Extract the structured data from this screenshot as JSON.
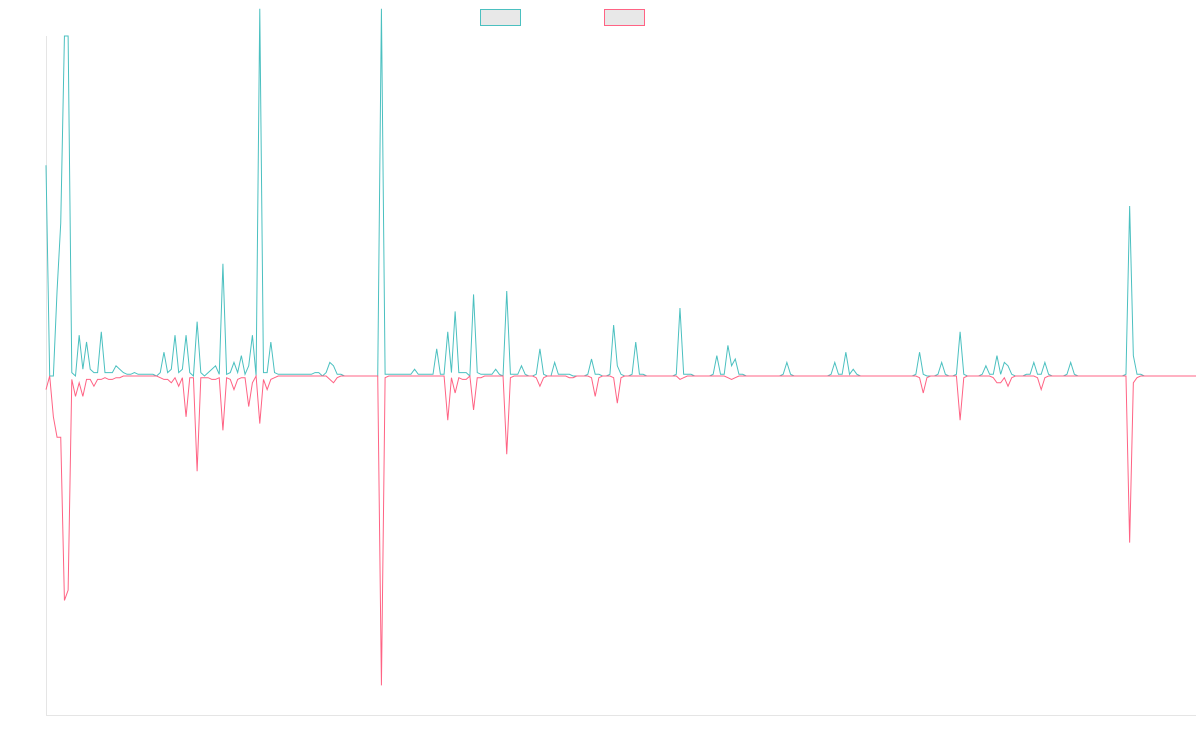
{
  "chart_data": {
    "type": "line",
    "title": "",
    "xlabel": "",
    "ylabel": "",
    "x_count": 313,
    "ylim": [
      -10,
      10
    ],
    "grid": false,
    "legend_position": "top-center",
    "series": [
      {
        "color": "#4bc0c0",
        "legend_fill": "#e8e8e8",
        "peaks": [
          [
            0,
            6.2
          ],
          [
            1,
            0
          ],
          [
            3,
            2.5
          ],
          [
            4,
            4.5
          ],
          [
            5,
            10
          ],
          [
            6,
            10
          ],
          [
            7,
            0.1
          ],
          [
            9,
            1.2
          ],
          [
            10,
            0.2
          ],
          [
            11,
            1
          ],
          [
            12,
            0.2
          ],
          [
            13,
            0.1
          ],
          [
            14,
            0.1
          ],
          [
            15,
            1.3
          ],
          [
            16,
            0.1
          ],
          [
            17,
            0.1
          ],
          [
            18,
            0.1
          ],
          [
            19,
            0.3
          ],
          [
            20,
            0.2
          ],
          [
            21,
            0.1
          ],
          [
            22,
            0.05
          ],
          [
            23,
            0.05
          ],
          [
            24,
            0.1
          ],
          [
            25,
            0.05
          ],
          [
            26,
            0.05
          ],
          [
            27,
            0.05
          ],
          [
            28,
            0.05
          ],
          [
            29,
            0.05
          ],
          [
            31,
            0.1
          ],
          [
            32,
            0.7
          ],
          [
            33,
            0.1
          ],
          [
            34,
            0.2
          ],
          [
            35,
            1.2
          ],
          [
            36,
            0.1
          ],
          [
            37,
            0.2
          ],
          [
            38,
            1.2
          ],
          [
            39,
            0.1
          ],
          [
            41,
            1.6
          ],
          [
            42,
            0.1
          ],
          [
            44,
            0.1
          ],
          [
            45,
            0.2
          ],
          [
            46,
            0.3
          ],
          [
            47,
            0.05
          ],
          [
            48,
            3.3
          ],
          [
            49,
            0.05
          ],
          [
            50,
            0.1
          ],
          [
            51,
            0.4
          ],
          [
            52,
            0.1
          ],
          [
            53,
            0.6
          ],
          [
            54,
            0.05
          ],
          [
            55,
            0.3
          ],
          [
            56,
            1.2
          ],
          [
            58,
            10.8
          ],
          [
            59,
            0.1
          ],
          [
            60,
            0.1
          ],
          [
            61,
            1
          ],
          [
            62,
            0.1
          ],
          [
            63,
            0.05
          ],
          [
            64,
            0.05
          ],
          [
            65,
            0.05
          ],
          [
            66,
            0.05
          ],
          [
            67,
            0.05
          ],
          [
            68,
            0.05
          ],
          [
            69,
            0.05
          ],
          [
            70,
            0.05
          ],
          [
            71,
            0.05
          ],
          [
            72,
            0.05
          ],
          [
            73,
            0.1
          ],
          [
            74,
            0.1
          ],
          [
            76,
            0.1
          ],
          [
            77,
            0.4
          ],
          [
            78,
            0.3
          ],
          [
            79,
            0.05
          ],
          [
            80,
            0.05
          ],
          [
            91,
            10.8
          ],
          [
            92,
            0.05
          ],
          [
            93,
            0.05
          ],
          [
            94,
            0.05
          ],
          [
            95,
            0.05
          ],
          [
            96,
            0.05
          ],
          [
            97,
            0.05
          ],
          [
            98,
            0.05
          ],
          [
            99,
            0.05
          ],
          [
            100,
            0.2
          ],
          [
            101,
            0.05
          ],
          [
            102,
            0.05
          ],
          [
            103,
            0.05
          ],
          [
            104,
            0.05
          ],
          [
            105,
            0.05
          ],
          [
            106,
            0.8
          ],
          [
            107,
            0.05
          ],
          [
            108,
            0.05
          ],
          [
            109,
            1.3
          ],
          [
            110,
            0.1
          ],
          [
            111,
            1.9
          ],
          [
            112,
            0.1
          ],
          [
            113,
            0.1
          ],
          [
            114,
            0.1
          ],
          [
            116,
            2.4
          ],
          [
            117,
            0.1
          ],
          [
            118,
            0.05
          ],
          [
            119,
            0.05
          ],
          [
            120,
            0.05
          ],
          [
            121,
            0.05
          ],
          [
            122,
            0.2
          ],
          [
            123,
            0.05
          ],
          [
            125,
            2.5
          ],
          [
            126,
            0.05
          ],
          [
            127,
            0.05
          ],
          [
            128,
            0.05
          ],
          [
            129,
            0.3
          ],
          [
            130,
            0.05
          ],
          [
            133,
            0.05
          ],
          [
            134,
            0.8
          ],
          [
            135,
            0.05
          ],
          [
            138,
            0.4
          ],
          [
            139,
            0.05
          ],
          [
            140,
            0.05
          ],
          [
            141,
            0.05
          ],
          [
            142,
            0.05
          ],
          [
            147,
            0.05
          ],
          [
            148,
            0.5
          ],
          [
            149,
            0.05
          ],
          [
            150,
            0.05
          ],
          [
            153,
            0.05
          ],
          [
            154,
            1.5
          ],
          [
            155,
            0.3
          ],
          [
            156,
            0.05
          ],
          [
            159,
            0.05
          ],
          [
            160,
            1
          ],
          [
            161,
            0.05
          ],
          [
            162,
            0.05
          ],
          [
            171,
            0.05
          ],
          [
            172,
            2
          ],
          [
            173,
            0.05
          ],
          [
            174,
            0.05
          ],
          [
            175,
            0.05
          ],
          [
            181,
            0.05
          ],
          [
            182,
            0.6
          ],
          [
            183,
            0.05
          ],
          [
            184,
            0.05
          ],
          [
            185,
            0.9
          ],
          [
            186,
            0.3
          ],
          [
            187,
            0.5
          ],
          [
            188,
            0.05
          ],
          [
            189,
            0.05
          ],
          [
            200,
            0.05
          ],
          [
            201,
            0.4
          ],
          [
            202,
            0.05
          ],
          [
            213,
            0.05
          ],
          [
            214,
            0.4
          ],
          [
            215,
            0.05
          ],
          [
            216,
            0.05
          ],
          [
            217,
            0.7
          ],
          [
            218,
            0.05
          ],
          [
            219,
            0.2
          ],
          [
            220,
            0.05
          ],
          [
            236,
            0.05
          ],
          [
            237,
            0.7
          ],
          [
            238,
            0.05
          ],
          [
            242,
            0.05
          ],
          [
            243,
            0.4
          ],
          [
            244,
            0.05
          ],
          [
            247,
            0.05
          ],
          [
            248,
            1.3
          ],
          [
            249,
            0.05
          ],
          [
            254,
            0.05
          ],
          [
            255,
            0.3
          ],
          [
            256,
            0.05
          ],
          [
            257,
            0.05
          ],
          [
            258,
            0.6
          ],
          [
            259,
            0.05
          ],
          [
            260,
            0.4
          ],
          [
            261,
            0.3
          ],
          [
            262,
            0.05
          ],
          [
            266,
            0.05
          ],
          [
            267,
            0.05
          ],
          [
            268,
            0.4
          ],
          [
            269,
            0.05
          ],
          [
            270,
            0.05
          ],
          [
            271,
            0.4
          ],
          [
            272,
            0.05
          ],
          [
            277,
            0.05
          ],
          [
            278,
            0.4
          ],
          [
            279,
            0.05
          ],
          [
            293,
            0.05
          ],
          [
            294,
            5
          ],
          [
            295,
            0.6
          ],
          [
            296,
            0.05
          ],
          [
            297,
            0.05
          ],
          [
            313,
            0.05
          ],
          [
            314,
            0.25
          ],
          [
            315,
            0.05
          ]
        ]
      },
      {
        "color": "#ff6384",
        "legend_fill": "#e8e8e8",
        "peaks": [
          [
            0,
            -0.4
          ],
          [
            1,
            0
          ],
          [
            2,
            -1.2
          ],
          [
            3,
            -1.8
          ],
          [
            4,
            -1.8
          ],
          [
            5,
            -6.6
          ],
          [
            6,
            -6.3
          ],
          [
            7,
            -0.1
          ],
          [
            8,
            -0.6
          ],
          [
            9,
            -0.2
          ],
          [
            10,
            -0.6
          ],
          [
            11,
            -0.1
          ],
          [
            12,
            -0.1
          ],
          [
            13,
            -0.3
          ],
          [
            14,
            -0.1
          ],
          [
            15,
            -0.1
          ],
          [
            16,
            -0.05
          ],
          [
            17,
            -0.1
          ],
          [
            18,
            -0.1
          ],
          [
            19,
            -0.05
          ],
          [
            20,
            -0.05
          ],
          [
            31,
            -0.05
          ],
          [
            32,
            -0.1
          ],
          [
            33,
            -0.1
          ],
          [
            34,
            -0.2
          ],
          [
            35,
            -0.05
          ],
          [
            36,
            -0.3
          ],
          [
            37,
            -0.05
          ],
          [
            38,
            -1.2
          ],
          [
            39,
            -0.05
          ],
          [
            40,
            -0.05
          ],
          [
            41,
            -2.8
          ],
          [
            42,
            -0.05
          ],
          [
            43,
            -0.05
          ],
          [
            44,
            -0.05
          ],
          [
            45,
            -0.1
          ],
          [
            46,
            -0.1
          ],
          [
            47,
            -0.05
          ],
          [
            48,
            -1.6
          ],
          [
            49,
            -0.05
          ],
          [
            50,
            -0.1
          ],
          [
            51,
            -0.4
          ],
          [
            52,
            -0.1
          ],
          [
            53,
            -0.05
          ],
          [
            54,
            -0.05
          ],
          [
            55,
            -0.9
          ],
          [
            56,
            -0.2
          ],
          [
            58,
            -1.4
          ],
          [
            59,
            -0.1
          ],
          [
            60,
            -0.4
          ],
          [
            61,
            -0.1
          ],
          [
            62,
            -0.05
          ],
          [
            77,
            -0.1
          ],
          [
            78,
            -0.2
          ],
          [
            79,
            -0.05
          ],
          [
            91,
            -9.1
          ],
          [
            92,
            -0.05
          ],
          [
            109,
            -1.3
          ],
          [
            110,
            -0.05
          ],
          [
            111,
            -0.5
          ],
          [
            112,
            -0.05
          ],
          [
            113,
            -0.1
          ],
          [
            114,
            -0.1
          ],
          [
            116,
            -1
          ],
          [
            117,
            -0.05
          ],
          [
            118,
            -0.05
          ],
          [
            125,
            -2.3
          ],
          [
            126,
            -0.05
          ],
          [
            133,
            -0.05
          ],
          [
            134,
            -0.3
          ],
          [
            135,
            -0.05
          ],
          [
            142,
            -0.05
          ],
          [
            143,
            -0.05
          ],
          [
            148,
            -0.05
          ],
          [
            149,
            -0.6
          ],
          [
            150,
            -0.05
          ],
          [
            154,
            -0.05
          ],
          [
            155,
            -0.8
          ],
          [
            156,
            -0.05
          ],
          [
            172,
            -0.1
          ],
          [
            173,
            -0.05
          ],
          [
            185,
            -0.05
          ],
          [
            186,
            -0.1
          ],
          [
            187,
            -0.05
          ],
          [
            237,
            -0.05
          ],
          [
            238,
            -0.5
          ],
          [
            239,
            -0.05
          ],
          [
            248,
            -1.3
          ],
          [
            249,
            -0.05
          ],
          [
            257,
            -0.05
          ],
          [
            258,
            -0.2
          ],
          [
            259,
            -0.2
          ],
          [
            260,
            -0.05
          ],
          [
            261,
            -0.3
          ],
          [
            262,
            -0.05
          ],
          [
            269,
            -0.05
          ],
          [
            270,
            -0.4
          ],
          [
            271,
            -0.05
          ],
          [
            294,
            -4.9
          ],
          [
            295,
            -0.2
          ],
          [
            296,
            -0.05
          ]
        ]
      }
    ]
  }
}
